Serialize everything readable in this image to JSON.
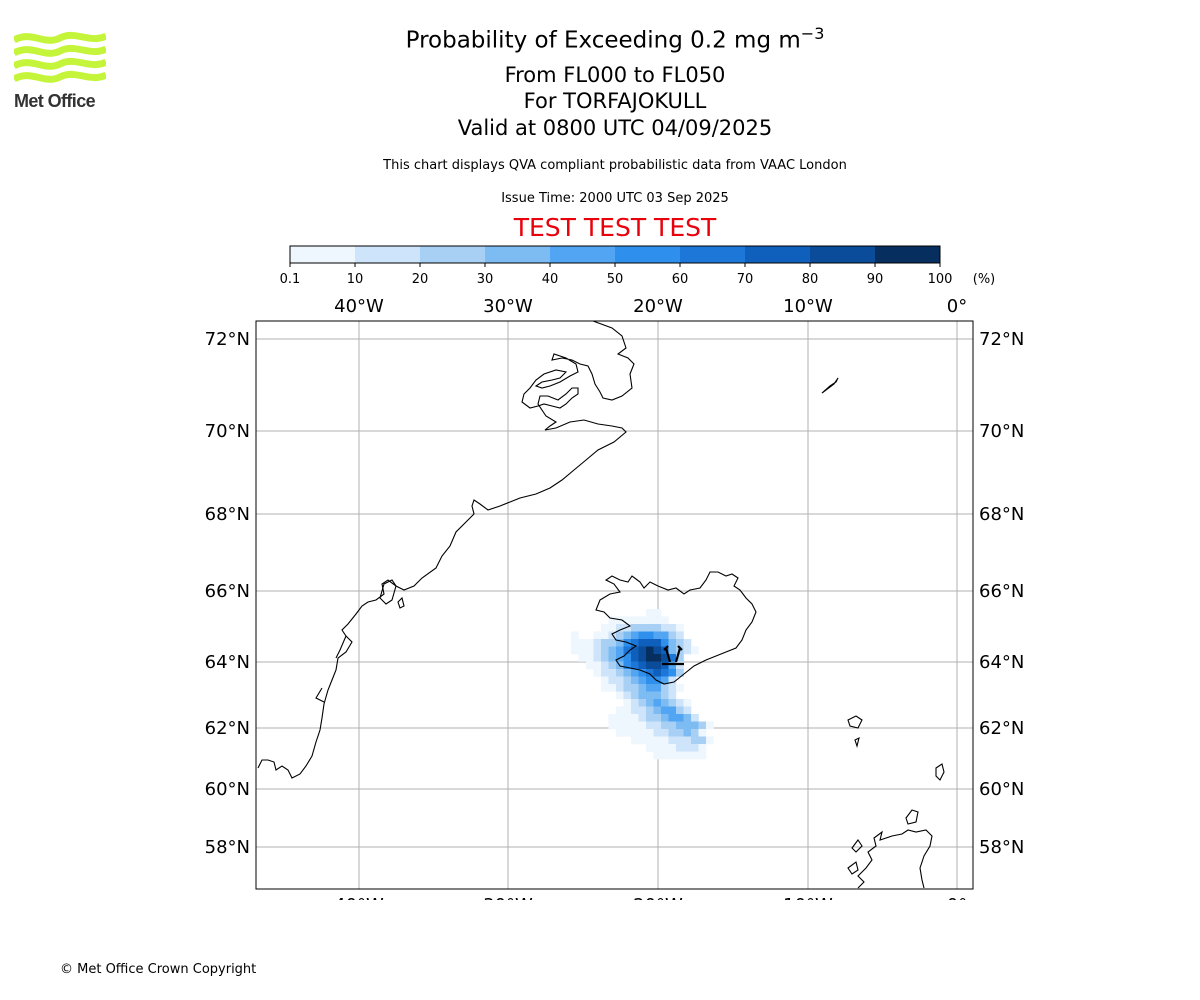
{
  "header": {
    "title_prefix": "Probability of Exceeding 0.2 mg m",
    "title_exp": "−3",
    "line2": "From FL000 to FL050",
    "line3": "For TORFAJOKULL",
    "line4": "Valid at 0800 UTC 04/09/2025",
    "description": "This chart displays QVA compliant probabilistic data from VAAC London",
    "issue_time": "Issue Time: 2000 UTC 03 Sep 2025",
    "test_banner": "TEST TEST TEST"
  },
  "logo": {
    "text": "Met Office",
    "color": "#c5f53a"
  },
  "colorbar": {
    "ticks": [
      "0.1",
      "10",
      "20",
      "30",
      "40",
      "50",
      "60",
      "70",
      "80",
      "90",
      "100"
    ],
    "unit": "(%)",
    "colors": [
      "#eef6fe",
      "#cde4fa",
      "#a8d0f5",
      "#7dbbf3",
      "#52a5f3",
      "#2e90ec",
      "#1c77d8",
      "#0f5fbc",
      "#0a4c99",
      "#062f5f"
    ]
  },
  "map": {
    "lon_labels": [
      "40°W",
      "30°W",
      "20°W",
      "10°W",
      "0°"
    ],
    "lat_labels": [
      "72°N",
      "70°N",
      "68°N",
      "66°N",
      "64°N",
      "62°N",
      "60°N",
      "58°N"
    ],
    "volcano": "TORFAJOKULL",
    "grid_color": "#b0b0b0"
  },
  "footer": {
    "copyright": "© Met Office Crown Copyright"
  }
}
